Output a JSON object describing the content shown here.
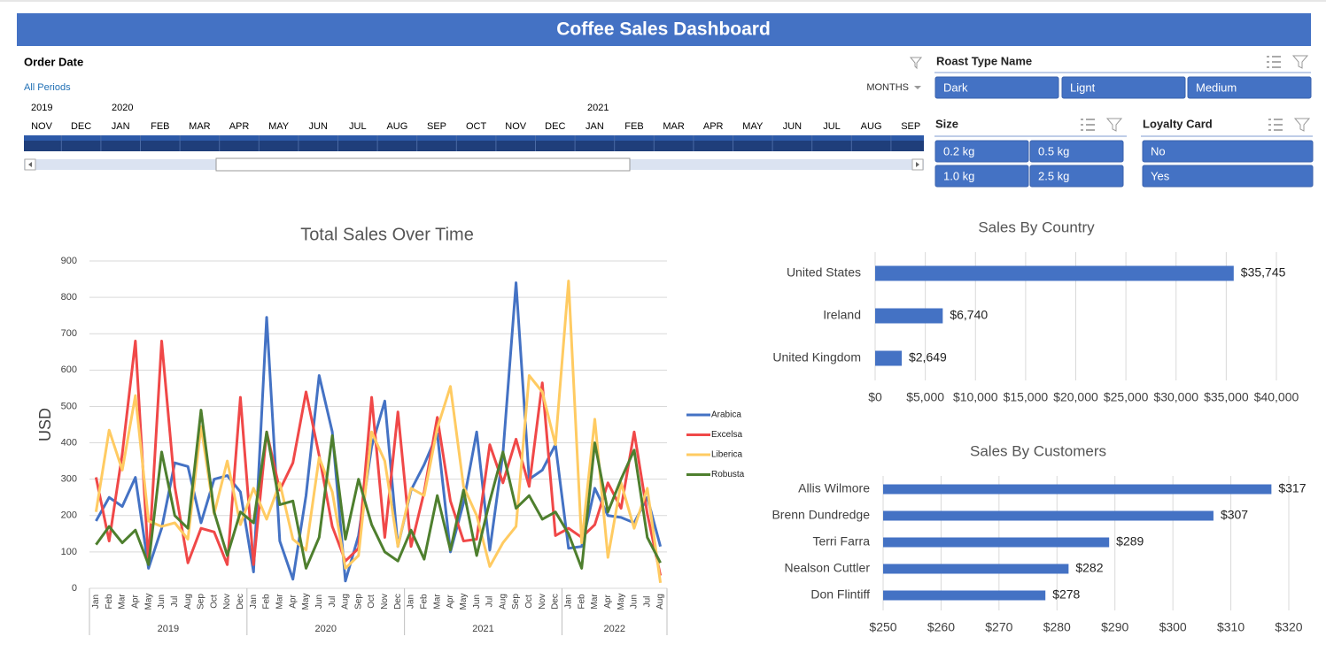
{
  "header": {
    "title": "Coffee Sales Dashboard"
  },
  "timeline": {
    "label": "Order Date",
    "period": "All Periods",
    "level": "MONTHS",
    "years": [
      "2019",
      "2020",
      "2021"
    ],
    "months": [
      "NOV",
      "DEC",
      "JAN",
      "FEB",
      "MAR",
      "APR",
      "MAY",
      "JUN",
      "JUL",
      "AUG",
      "SEP",
      "OCT",
      "NOV",
      "DEC",
      "JAN",
      "FEB",
      "MAR",
      "APR",
      "MAY",
      "JUN",
      "JUL",
      "AUG",
      "SEP"
    ]
  },
  "slicers": [
    {
      "title": "Roast Type Name",
      "items": [
        "Dark",
        "Lignt",
        "Medium"
      ]
    },
    {
      "title": "Size",
      "items": [
        "0.2 kg",
        "0.5 kg",
        "1.0 kg",
        "2.5 kg"
      ]
    },
    {
      "title": "Loyalty Card",
      "items": [
        "No",
        "Yes"
      ]
    }
  ],
  "chart_data": [
    {
      "type": "line",
      "title": "Total Sales Over Time",
      "y_label": "USD",
      "year_groups": [
        {
          "label": "2019",
          "months": [
            "Jan",
            "Feb",
            "Mar",
            "Apr",
            "May",
            "Jun",
            "Jul",
            "Aug",
            "Sep",
            "Oct",
            "Nov",
            "Dec"
          ]
        },
        {
          "label": "2020",
          "months": [
            "Jan",
            "Feb",
            "Mar",
            "Apr",
            "May",
            "Jun",
            "Jul",
            "Aug",
            "Sep",
            "Oct",
            "Nov",
            "Dec"
          ]
        },
        {
          "label": "2021",
          "months": [
            "Jan",
            "Feb",
            "Mar",
            "Apr",
            "May",
            "Jun",
            "Jul",
            "Aug",
            "Sep",
            "Oct",
            "Nov",
            "Dec"
          ]
        },
        {
          "label": "2022",
          "months": [
            "Jan",
            "Feb",
            "Mar",
            "Apr",
            "May",
            "Jun",
            "Jul",
            "Aug"
          ]
        }
      ],
      "ylim": [
        0,
        900
      ],
      "yticks": [
        0,
        100,
        200,
        300,
        400,
        500,
        600,
        700,
        800,
        900
      ],
      "grid": true,
      "series": [
        {
          "name": "Arabica",
          "color": "#4472c4",
          "values": [
            185,
            250,
            225,
            305,
            55,
            165,
            345,
            335,
            180,
            300,
            310,
            265,
            45,
            745,
            130,
            25,
            255,
            585,
            430,
            20,
            145,
            390,
            515,
            115,
            270,
            340,
            425,
            100,
            235,
            430,
            105,
            370,
            840,
            300,
            325,
            395,
            110,
            115,
            275,
            200,
            195,
            180,
            250,
            115
          ]
        },
        {
          "name": "Excelsa",
          "color": "#f04848",
          "values": [
            305,
            130,
            370,
            680,
            70,
            680,
            280,
            70,
            165,
            155,
            65,
            525,
            65,
            430,
            270,
            345,
            540,
            365,
            170,
            75,
            110,
            525,
            140,
            485,
            115,
            265,
            470,
            240,
            130,
            135,
            395,
            290,
            410,
            280,
            565,
            145,
            165,
            140,
            175,
            290,
            220,
            430,
            205,
            35
          ]
        },
        {
          "name": "Liberica",
          "color": "#ffcb62",
          "values": [
            210,
            435,
            325,
            530,
            185,
            170,
            180,
            135,
            445,
            205,
            350,
            175,
            275,
            190,
            290,
            135,
            105,
            360,
            265,
            55,
            90,
            430,
            350,
            115,
            275,
            255,
            440,
            555,
            280,
            200,
            60,
            125,
            170,
            585,
            540,
            395,
            845,
            125,
            465,
            85,
            290,
            165,
            275,
            15
          ]
        },
        {
          "name": "Robusta",
          "color": "#4e7f2e",
          "values": [
            120,
            170,
            125,
            160,
            65,
            375,
            200,
            165,
            490,
            210,
            90,
            210,
            180,
            430,
            230,
            240,
            55,
            140,
            420,
            135,
            300,
            175,
            100,
            75,
            160,
            80,
            255,
            105,
            270,
            90,
            240,
            375,
            220,
            255,
            190,
            210,
            150,
            55,
            400,
            210,
            300,
            380,
            140,
            70
          ]
        }
      ]
    },
    {
      "type": "hbar",
      "title": "Sales By Country",
      "color": "#4472c4",
      "grid": true,
      "categories": [
        "United States",
        "Ireland",
        "United Kingdom"
      ],
      "values": [
        35745,
        6740,
        2649
      ],
      "value_labels": [
        "$35,745",
        "$6,740",
        "$2,649"
      ],
      "xlim": [
        0,
        40000
      ],
      "xticks": [
        {
          "value": 0,
          "label": "$0"
        },
        {
          "value": 5000,
          "label": "$5,000"
        },
        {
          "value": 10000,
          "label": "$10,000"
        },
        {
          "value": 15000,
          "label": "$15,000"
        },
        {
          "value": 20000,
          "label": "$20,000"
        },
        {
          "value": 25000,
          "label": "$25,000"
        },
        {
          "value": 30000,
          "label": "$30,000"
        },
        {
          "value": 35000,
          "label": "$35,000"
        },
        {
          "value": 40000,
          "label": "$40,000"
        }
      ]
    },
    {
      "type": "hbar",
      "title": "Sales By Customers",
      "color": "#4472c4",
      "grid": true,
      "categories": [
        "Allis Wilmore",
        "Brenn Dundredge",
        "Terri Farra",
        "Nealson Cuttler",
        "Don Flintiff"
      ],
      "values": [
        317,
        307,
        289,
        282,
        278
      ],
      "value_labels": [
        "$317",
        "$307",
        "$289",
        "$282",
        "$278"
      ],
      "xlim": [
        250,
        320
      ],
      "xticks": [
        {
          "value": 250,
          "label": "$250"
        },
        {
          "value": 260,
          "label": "$260"
        },
        {
          "value": 270,
          "label": "$270"
        },
        {
          "value": 280,
          "label": "$280"
        },
        {
          "value": 290,
          "label": "$290"
        },
        {
          "value": 300,
          "label": "$300"
        },
        {
          "value": 310,
          "label": "$310"
        },
        {
          "value": 320,
          "label": "$320"
        }
      ]
    }
  ]
}
